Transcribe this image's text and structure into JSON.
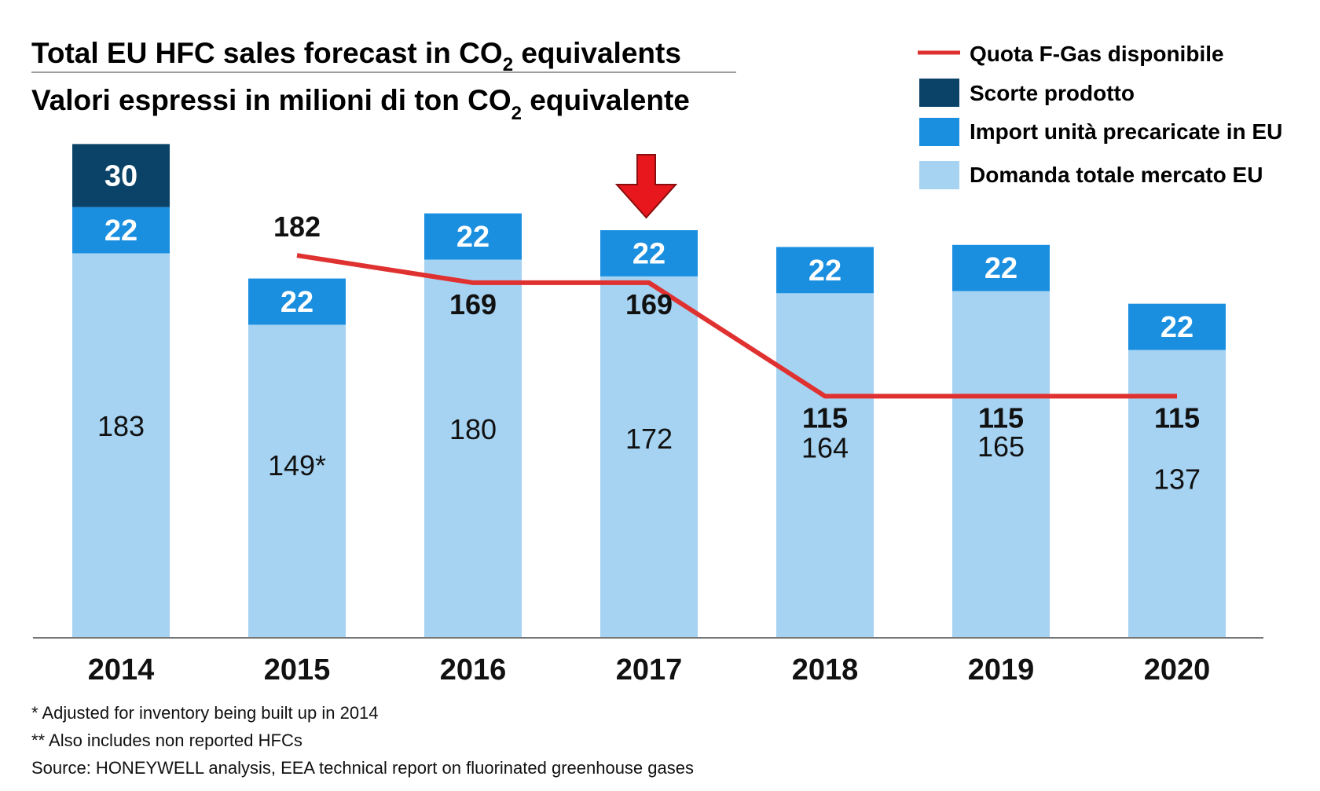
{
  "chart_data": {
    "type": "bar",
    "stacked": true,
    "title_main": "Total EU HFC sales forecast in CO",
    "title_main_sub": "2",
    "title_main_end": " equivalents",
    "title_sub": "Valori espressi in milioni di ton CO",
    "title_sub_sub": "2",
    "title_sub_end": " equivalente",
    "categories": [
      "2014",
      "2015",
      "2016",
      "2017",
      "2018",
      "2019",
      "2020"
    ],
    "bar_value_labels": [
      "183",
      "149*",
      "180",
      "172",
      "164",
      "165",
      "137"
    ],
    "series": [
      {
        "name": "Domanda totale mercato EU",
        "color": "#a6d3f2",
        "values": [
          183,
          149,
          180,
          172,
          164,
          165,
          137
        ]
      },
      {
        "name": "Import unità precaricate in EU",
        "color": "#1a8fe0",
        "values": [
          22,
          22,
          22,
          22,
          22,
          22,
          22
        ]
      },
      {
        "name": "Scorte prodotto",
        "color": "#0b4368",
        "values": [
          30,
          null,
          null,
          null,
          null,
          null,
          null
        ]
      }
    ],
    "line_series": {
      "name": "Quota F-Gas disponibile",
      "color": "#e03131",
      "values": [
        null,
        182,
        169,
        169,
        115,
        115,
        115
      ]
    },
    "legend_position": "top-right",
    "highlight_category": "2017",
    "highlight_color": "#e8161d",
    "grid": false,
    "ylim": [
      0,
      240
    ]
  },
  "notes": [
    "* Adjusted for inventory being built up in 2014",
    "** Also includes non reported HFCs",
    "Source: HONEYWELL analysis, EEA technical report on fluorinated greenhouse gases"
  ]
}
